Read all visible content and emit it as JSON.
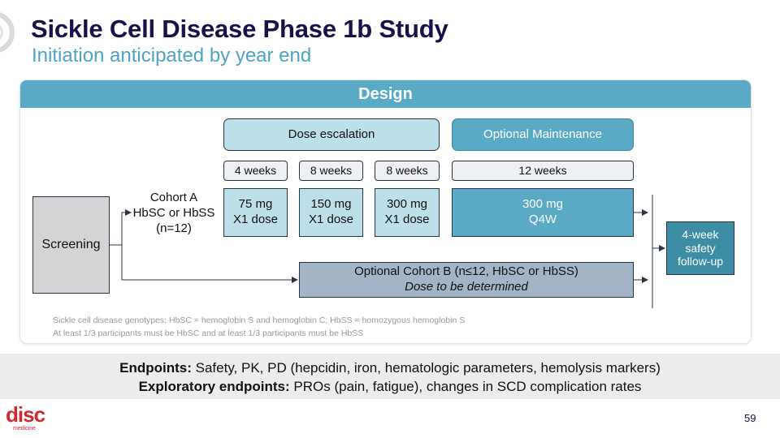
{
  "header": {
    "title": "Sickle Cell Disease Phase 1b Study",
    "subtitle": "Initiation anticipated by year end"
  },
  "design": {
    "header": "Design",
    "phases": {
      "escalation": "Dose escalation",
      "maintenance": "Optional Maintenance"
    },
    "durations": [
      "4 weeks",
      "8 weeks",
      "8 weeks",
      "12 weeks"
    ],
    "doses": [
      {
        "line1": "75 mg",
        "line2": "X1 dose"
      },
      {
        "line1": "150 mg",
        "line2": "X1 dose"
      },
      {
        "line1": "300 mg",
        "line2": "X1 dose"
      },
      {
        "line1": "300 mg",
        "line2": "Q4W"
      }
    ],
    "screening": "Screening",
    "cohort_a": {
      "line1": "Cohort A",
      "line2": "HbSC or HbSS",
      "line3": "(n=12)"
    },
    "cohort_b": {
      "line1": "Optional Cohort B (n≤12, HbSC or HbSS)",
      "line2": "Dose to be determined"
    },
    "followup": {
      "line1": "4-week",
      "line2": "safety",
      "line3": "follow-up"
    },
    "footnotes": [
      "Sickle cell disease genotypes: HbSC = hemoglobin S and hemoglobin C; HbSS = homozygous hemoglobin S",
      "At least 1/3 participants must be HbSC and at least 1/3 participants must be HbSS"
    ]
  },
  "endpoints": {
    "primary_label": "Endpoints:",
    "primary_text": "Safety, PK, PD (hepcidin, iron, hematologic parameters, hemolysis markers)",
    "exploratory_label": "Exploratory endpoints:",
    "exploratory_text": "PROs (pain, fatigue), changes in SCD complication rates"
  },
  "footer": {
    "logo_word": "disc",
    "logo_sub": "medicine",
    "page_number": "59"
  },
  "colors": {
    "title": "#17124a",
    "subtitle": "#4ea3c6",
    "design_header": "#5aaac6",
    "light_blue": "#bcdfe9",
    "followup": "#3d8ea5",
    "cohort_b": "#a2b4c6",
    "screening": "#d4d4d6",
    "brand_red": "#d4262d"
  }
}
